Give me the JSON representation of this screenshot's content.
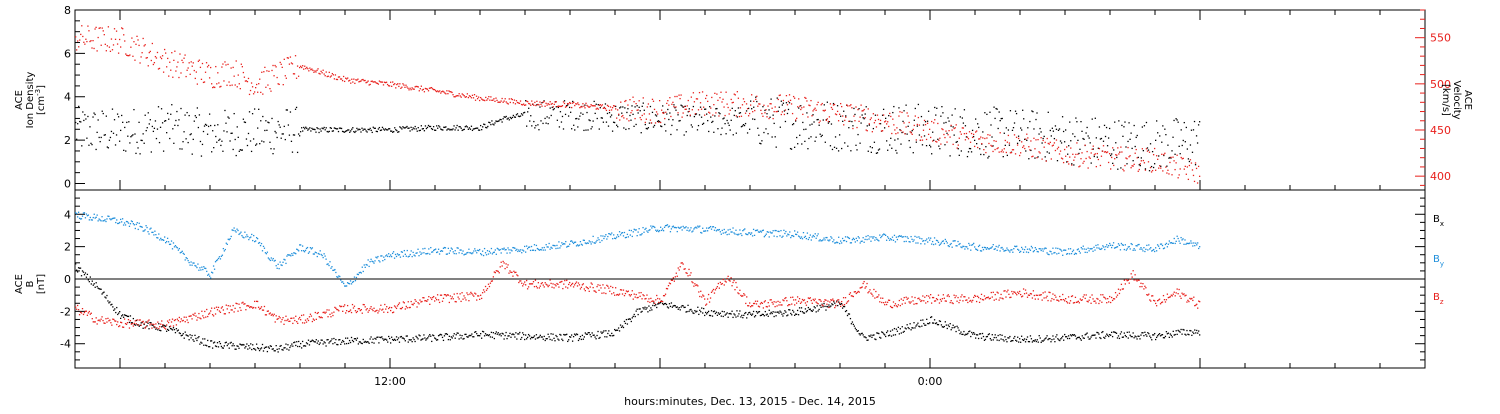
{
  "chart_data": [
    {
      "type": "scatter",
      "panel": "top",
      "xaxis_label": "hours:minutes, Dec. 13, 2015 - Dec. 14, 2015",
      "x_ticklabels": [
        {
          "label": "12:00",
          "hours_from_start": 18
        },
        {
          "label": "0:00",
          "hours_from_start": 30
        }
      ],
      "x_range_hours": [
        11,
        41
      ],
      "left_axis": {
        "label_lines": [
          "ACE",
          "Ion Density"
        ],
        "unit_base": "[cm",
        "unit_sup": "-3",
        "unit_end": "]",
        "ylim": [
          -0.3,
          8.0
        ],
        "ticks": [
          0,
          2,
          4,
          6,
          8
        ]
      },
      "right_axis": {
        "label_lines": [
          "ACE",
          "Velocity"
        ],
        "unit": "[km/s]",
        "ylim": [
          385,
          580
        ],
        "ticks": [
          400,
          450,
          500,
          550
        ],
        "color": "#e8201c"
      },
      "grid": false,
      "series": [
        {
          "axis": "left",
          "color": "#000000",
          "points": [
            [
              11.0,
              2.5
            ],
            [
              12.0,
              2.4
            ],
            [
              13.0,
              2.6
            ],
            [
              13.5,
              2.5
            ],
            [
              14.0,
              2.3
            ],
            [
              14.5,
              2.4
            ],
            [
              15.0,
              2.4
            ],
            [
              16.0,
              2.5
            ],
            [
              17.0,
              2.5
            ],
            [
              18.0,
              2.5
            ],
            [
              19.0,
              2.6
            ],
            [
              20.0,
              2.6
            ],
            [
              20.5,
              3.0
            ],
            [
              21.0,
              3.2
            ],
            [
              22.0,
              3.2
            ],
            [
              23.0,
              3.1
            ],
            [
              24.0,
              3.0
            ],
            [
              25.0,
              2.9
            ],
            [
              26.0,
              2.9
            ],
            [
              27.0,
              2.8
            ],
            [
              28.0,
              2.7
            ],
            [
              29.0,
              2.6
            ],
            [
              30.0,
              2.5
            ],
            [
              31.0,
              2.4
            ],
            [
              32.0,
              2.3
            ],
            [
              33.0,
              2.1
            ],
            [
              34.0,
              1.9
            ],
            [
              35.0,
              1.8
            ],
            [
              35.5,
              1.9
            ],
            [
              36.0,
              2.0
            ]
          ]
        },
        {
          "axis": "right",
          "color": "#e8201c",
          "points": [
            [
              11.0,
              550
            ],
            [
              12.0,
              548
            ],
            [
              13.0,
              525
            ],
            [
              14.0,
              510
            ],
            [
              14.5,
              514
            ],
            [
              15.0,
              500
            ],
            [
              16.0,
              520
            ],
            [
              17.0,
              505
            ],
            [
              18.0,
              500
            ],
            [
              19.0,
              493
            ],
            [
              20.0,
              485
            ],
            [
              21.0,
              480
            ],
            [
              22.0,
              478
            ],
            [
              23.0,
              474
            ],
            [
              24.0,
              472
            ],
            [
              25.0,
              480
            ],
            [
              26.0,
              478
            ],
            [
              27.0,
              475
            ],
            [
              28.0,
              468
            ],
            [
              29.0,
              460
            ],
            [
              30.0,
              450
            ],
            [
              31.0,
              440
            ],
            [
              32.0,
              435
            ],
            [
              33.0,
              425
            ],
            [
              34.0,
              420
            ],
            [
              35.0,
              418
            ],
            [
              35.5,
              410
            ],
            [
              36.0,
              404
            ]
          ]
        }
      ]
    },
    {
      "type": "scatter",
      "panel": "bottom",
      "left_axis": {
        "label_lines": [
          "ACE",
          "B"
        ],
        "unit": "[nT]",
        "ylim": [
          -5.5,
          5.5
        ],
        "ticks": [
          -4,
          -2,
          0,
          2,
          4
        ]
      },
      "zero_line": true,
      "grid": false,
      "legend": [
        {
          "name": "B",
          "sub": "x",
          "color": "#000000"
        },
        {
          "name": "B",
          "sub": "y",
          "color": "#1f8fdb"
        },
        {
          "name": "B",
          "sub": "z",
          "color": "#e8201c"
        }
      ],
      "series": [
        {
          "name": "Bx",
          "color": "#000000",
          "points": [
            [
              11.0,
              0.8
            ],
            [
              11.5,
              -0.5
            ],
            [
              12.0,
              -2.2
            ],
            [
              12.5,
              -2.8
            ],
            [
              13.0,
              -3.0
            ],
            [
              14.0,
              -4.0
            ],
            [
              15.0,
              -4.2
            ],
            [
              15.5,
              -4.3
            ],
            [
              16.0,
              -4.0
            ],
            [
              17.0,
              -3.8
            ],
            [
              18.0,
              -3.7
            ],
            [
              19.0,
              -3.6
            ],
            [
              20.0,
              -3.4
            ],
            [
              21.0,
              -3.5
            ],
            [
              22.0,
              -3.6
            ],
            [
              23.0,
              -3.3
            ],
            [
              23.5,
              -2.0
            ],
            [
              24.0,
              -1.5
            ],
            [
              25.0,
              -2.0
            ],
            [
              26.0,
              -2.2
            ],
            [
              27.0,
              -2.0
            ],
            [
              28.0,
              -1.5
            ],
            [
              28.5,
              -3.6
            ],
            [
              29.0,
              -3.4
            ],
            [
              30.0,
              -2.5
            ],
            [
              31.0,
              -3.5
            ],
            [
              32.0,
              -3.7
            ],
            [
              33.0,
              -3.6
            ],
            [
              34.0,
              -3.4
            ],
            [
              35.0,
              -3.5
            ],
            [
              35.5,
              -3.3
            ],
            [
              36.0,
              -3.2
            ]
          ]
        },
        {
          "name": "By",
          "color": "#1f8fdb",
          "points": [
            [
              11.0,
              4.0
            ],
            [
              11.5,
              3.8
            ],
            [
              12.0,
              3.6
            ],
            [
              12.5,
              3.2
            ],
            [
              13.0,
              2.5
            ],
            [
              13.5,
              1.2
            ],
            [
              14.0,
              0.3
            ],
            [
              14.5,
              3.0
            ],
            [
              15.0,
              2.5
            ],
            [
              15.5,
              0.8
            ],
            [
              16.0,
              2.0
            ],
            [
              16.5,
              1.5
            ],
            [
              17.0,
              -0.5
            ],
            [
              17.5,
              1.0
            ],
            [
              18.0,
              1.5
            ],
            [
              19.0,
              1.8
            ],
            [
              20.0,
              1.7
            ],
            [
              21.0,
              1.9
            ],
            [
              22.0,
              2.2
            ],
            [
              23.0,
              2.7
            ],
            [
              24.0,
              3.2
            ],
            [
              25.0,
              3.1
            ],
            [
              26.0,
              2.9
            ],
            [
              27.0,
              2.8
            ],
            [
              28.0,
              2.4
            ],
            [
              29.0,
              2.6
            ],
            [
              30.0,
              2.4
            ],
            [
              31.0,
              2.0
            ],
            [
              32.0,
              1.9
            ],
            [
              33.0,
              1.7
            ],
            [
              34.0,
              2.1
            ],
            [
              35.0,
              1.9
            ],
            [
              35.5,
              2.5
            ],
            [
              36.0,
              2.0
            ]
          ]
        },
        {
          "name": "Bz",
          "color": "#e8201c",
          "points": [
            [
              11.0,
              -1.8
            ],
            [
              11.5,
              -2.5
            ],
            [
              12.0,
              -2.7
            ],
            [
              13.0,
              -2.8
            ],
            [
              14.0,
              -2.0
            ],
            [
              15.0,
              -1.5
            ],
            [
              15.5,
              -2.5
            ],
            [
              16.0,
              -2.5
            ],
            [
              17.0,
              -1.8
            ],
            [
              18.0,
              -1.8
            ],
            [
              19.0,
              -1.2
            ],
            [
              20.0,
              -1.0
            ],
            [
              20.5,
              1.0
            ],
            [
              21.0,
              -0.3
            ],
            [
              22.0,
              -0.3
            ],
            [
              23.0,
              -0.7
            ],
            [
              24.0,
              -1.3
            ],
            [
              24.5,
              1.0
            ],
            [
              25.0,
              -1.4
            ],
            [
              25.5,
              0.2
            ],
            [
              26.0,
              -1.6
            ],
            [
              27.0,
              -1.3
            ],
            [
              28.0,
              -1.5
            ],
            [
              28.5,
              -0.3
            ],
            [
              29.0,
              -1.5
            ],
            [
              30.0,
              -1.2
            ],
            [
              31.0,
              -1.2
            ],
            [
              32.0,
              -0.8
            ],
            [
              33.0,
              -1.2
            ],
            [
              34.0,
              -1.2
            ],
            [
              34.5,
              0.3
            ],
            [
              35.0,
              -1.5
            ],
            [
              35.5,
              -0.8
            ],
            [
              36.0,
              -1.6
            ]
          ]
        }
      ]
    }
  ]
}
